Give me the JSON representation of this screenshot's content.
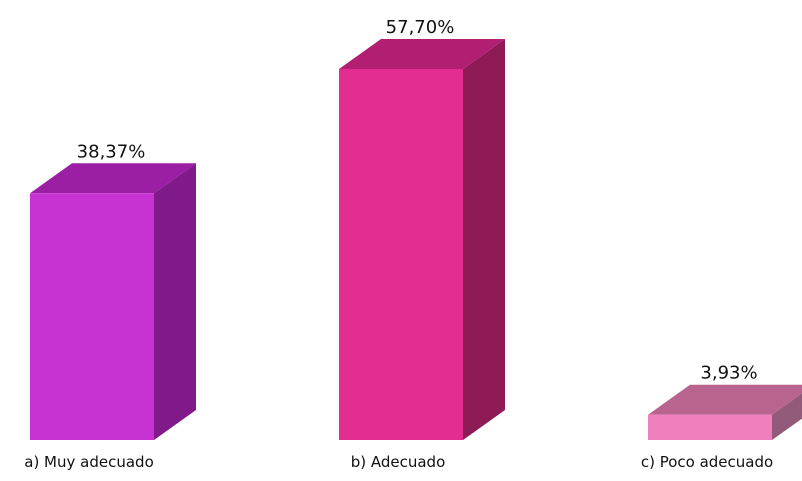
{
  "chart_data": {
    "type": "bar",
    "style": "3d-column",
    "categories": [
      "a) Muy adecuado",
      "b) Adecuado",
      "c) Poco adecuado"
    ],
    "values": [
      38.37,
      57.7,
      3.93
    ],
    "value_labels": [
      "38,37%",
      "57,70%",
      "3,93%"
    ],
    "unit": "%",
    "colors": {
      "front": [
        "#c732d2",
        "#e32d90",
        "#f07fbe"
      ],
      "top": [
        "#9a1fa5",
        "#b21f72",
        "#b9648e"
      ],
      "side": [
        "#7f1a88",
        "#8e1a56",
        "#915a78"
      ]
    },
    "title": "",
    "xlabel": "",
    "ylabel": "",
    "ylim": [
      0,
      57.7
    ],
    "grid": false,
    "legend": "none"
  }
}
